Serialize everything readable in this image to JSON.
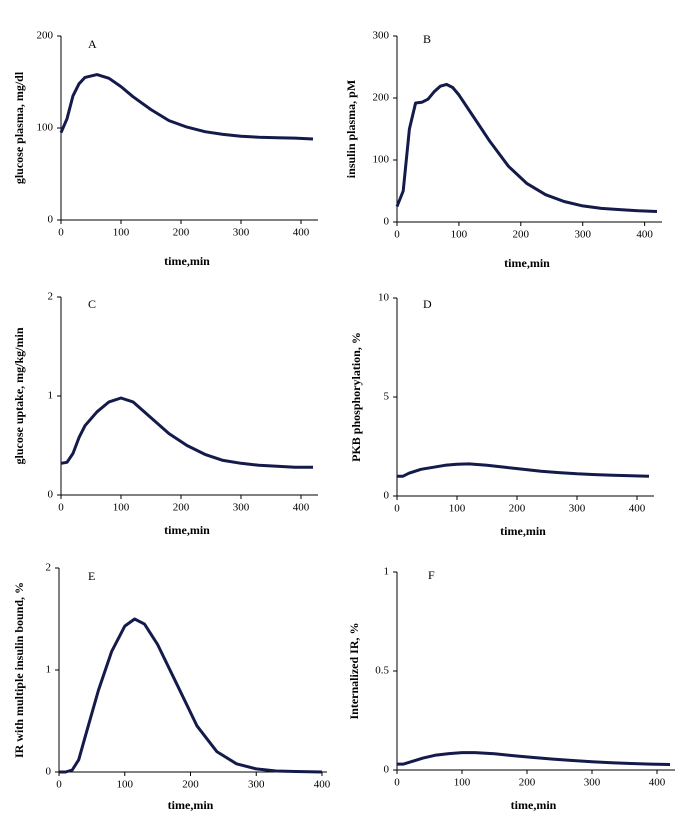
{
  "chart_data": [
    {
      "type": "line",
      "label": "A",
      "x_label": "time,min",
      "y_label": "glucose plasma, mg/dl",
      "color": "#141a4a",
      "x": [
        0,
        10,
        20,
        30,
        40,
        60,
        80,
        100,
        120,
        150,
        180,
        210,
        240,
        270,
        300,
        330,
        360,
        390,
        420
      ],
      "values": [
        95,
        110,
        135,
        148,
        155,
        158,
        154,
        145,
        134,
        120,
        108,
        101,
        96,
        93,
        91,
        90,
        89.5,
        89,
        88
      ],
      "xlim": [
        0,
        420
      ],
      "ylim": [
        0,
        200
      ],
      "xticks": [
        0,
        100,
        200,
        300,
        400
      ],
      "yticks": [
        0,
        100,
        200
      ]
    },
    {
      "type": "line",
      "label": "B",
      "x_label": "time,min",
      "y_label": "insulin plasma, pM",
      "color": "#141a4a",
      "x": [
        0,
        10,
        20,
        30,
        40,
        50,
        60,
        70,
        80,
        90,
        100,
        120,
        150,
        180,
        210,
        240,
        270,
        300,
        330,
        360,
        390,
        420
      ],
      "values": [
        25,
        50,
        150,
        192,
        193,
        198,
        210,
        219,
        222,
        217,
        205,
        175,
        130,
        90,
        62,
        44,
        33,
        26,
        22,
        20,
        18,
        17
      ],
      "xlim": [
        0,
        420
      ],
      "ylim": [
        0,
        300
      ],
      "xticks": [
        0,
        100,
        200,
        300,
        400
      ],
      "yticks": [
        0,
        100,
        200,
        300
      ]
    },
    {
      "type": "line",
      "label": "C",
      "x_label": "time,min",
      "y_label": "glucose uptake, mg/kg/min",
      "color": "#141a4a",
      "x": [
        0,
        10,
        20,
        30,
        40,
        60,
        80,
        100,
        120,
        150,
        180,
        210,
        240,
        270,
        300,
        330,
        360,
        390,
        420
      ],
      "values": [
        0.32,
        0.33,
        0.42,
        0.58,
        0.7,
        0.84,
        0.94,
        0.98,
        0.94,
        0.78,
        0.62,
        0.5,
        0.41,
        0.35,
        0.32,
        0.3,
        0.29,
        0.28,
        0.28
      ],
      "xlim": [
        0,
        420
      ],
      "ylim": [
        0,
        2
      ],
      "xticks": [
        0,
        100,
        200,
        300,
        400
      ],
      "yticks": [
        0,
        1,
        2
      ]
    },
    {
      "type": "line",
      "label": "D",
      "x_label": "time,min",
      "y_label": "PKB phosphorylation, %",
      "color": "#141a4a",
      "x": [
        0,
        10,
        20,
        40,
        60,
        80,
        100,
        120,
        150,
        180,
        210,
        240,
        270,
        300,
        330,
        360,
        390,
        420
      ],
      "values": [
        1.0,
        1.0,
        1.15,
        1.35,
        1.45,
        1.55,
        1.6,
        1.62,
        1.55,
        1.45,
        1.35,
        1.25,
        1.18,
        1.12,
        1.08,
        1.05,
        1.02,
        1.0
      ],
      "xlim": [
        0,
        420
      ],
      "ylim": [
        0,
        10
      ],
      "xticks": [
        0,
        100,
        200,
        300,
        400
      ],
      "yticks": [
        0,
        5,
        10
      ]
    },
    {
      "type": "line",
      "label": "E",
      "x_label": "time,min",
      "y_label": "IR with multiple insulin bound, %",
      "color": "#141a4a",
      "x": [
        0,
        10,
        20,
        30,
        40,
        60,
        80,
        100,
        115,
        130,
        150,
        180,
        210,
        240,
        270,
        300,
        330,
        360,
        400
      ],
      "values": [
        0,
        0,
        0.02,
        0.12,
        0.35,
        0.8,
        1.18,
        1.43,
        1.5,
        1.45,
        1.25,
        0.85,
        0.45,
        0.2,
        0.08,
        0.03,
        0.01,
        0.005,
        0
      ],
      "xlim": [
        0,
        400
      ],
      "ylim": [
        0,
        2
      ],
      "xticks": [
        0,
        100,
        200,
        300,
        400
      ],
      "yticks": [
        0,
        1,
        2
      ]
    },
    {
      "type": "line",
      "label": "F",
      "x_label": "time,min",
      "y_label": "Internalized  IR, %",
      "color": "#141a4a",
      "x": [
        0,
        10,
        20,
        40,
        60,
        80,
        100,
        120,
        150,
        180,
        210,
        240,
        270,
        300,
        330,
        360,
        390,
        420
      ],
      "values": [
        0.03,
        0.03,
        0.04,
        0.06,
        0.075,
        0.083,
        0.088,
        0.088,
        0.082,
        0.072,
        0.063,
        0.055,
        0.048,
        0.042,
        0.037,
        0.033,
        0.03,
        0.028
      ],
      "xlim": [
        0,
        420
      ],
      "ylim": [
        0,
        1
      ],
      "xticks": [
        0,
        100,
        200,
        300,
        400
      ],
      "yticks": [
        0,
        0.5,
        1
      ]
    }
  ]
}
